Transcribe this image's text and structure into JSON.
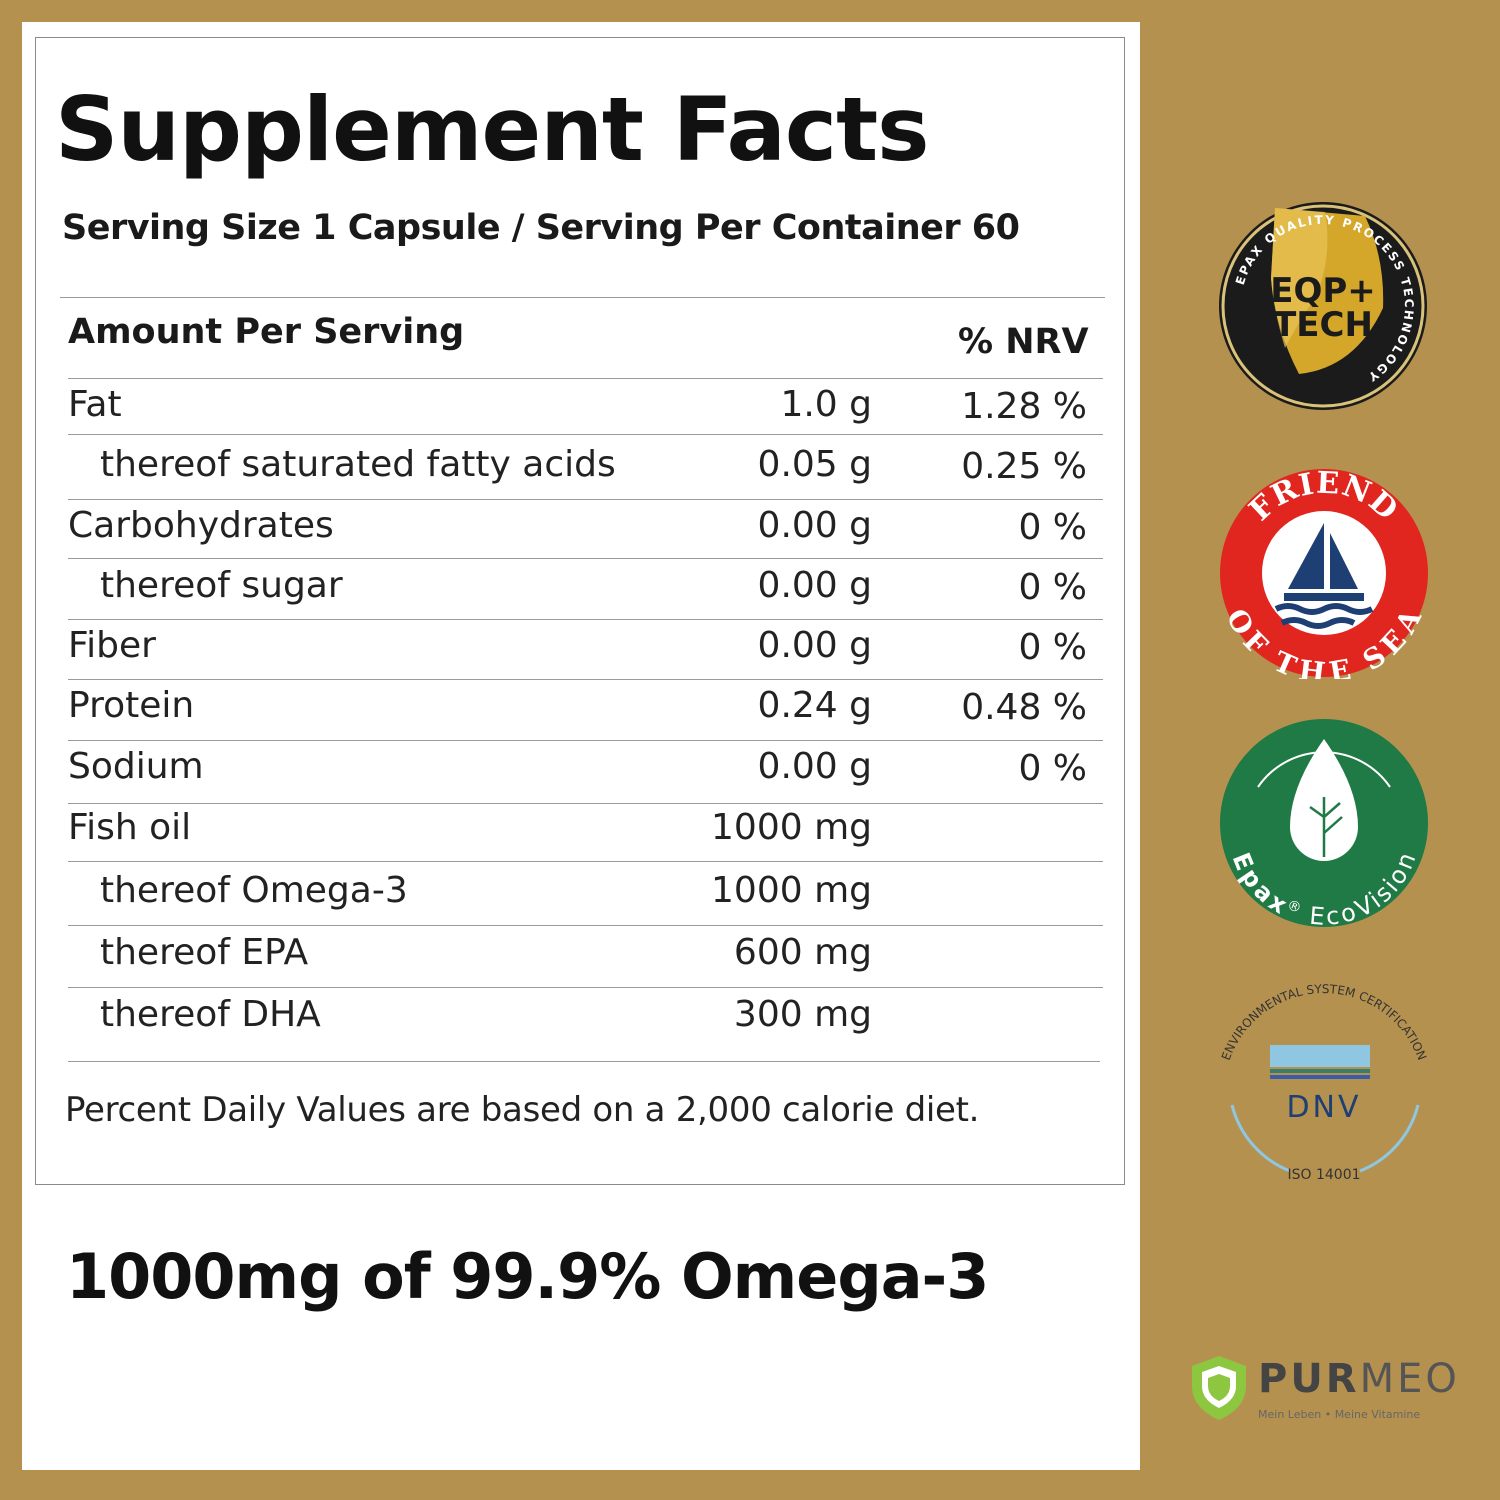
{
  "panel": {
    "title": "Supplement Facts",
    "serving": "Serving Size 1 Capsule / Serving Per Container 60",
    "header_amount": "Amount Per Serving",
    "header_nrv": "% NRV",
    "rows": [
      {
        "name": "Fat",
        "amount": "1.0 g",
        "nrv": "1.28 %"
      },
      {
        "name": "thereof saturated fatty acids",
        "amount": "0.05 g",
        "nrv": "0.25 %"
      },
      {
        "name": "Carbohydrates",
        "amount": "0.00 g",
        "nrv": "0 %"
      },
      {
        "name": "thereof sugar",
        "amount": "0.00 g",
        "nrv": "0 %"
      },
      {
        "name": "Fiber",
        "amount": "0.00 g",
        "nrv": "0 %"
      },
      {
        "name": "Protein",
        "amount": "0.24 g",
        "nrv": "0.48 %"
      },
      {
        "name": "Sodium",
        "amount": "0.00 g",
        "nrv": "0 %"
      },
      {
        "name": "Fish oil",
        "amount": "1000 mg",
        "nrv": ""
      },
      {
        "name": "thereof Omega-3",
        "amount": "1000 mg",
        "nrv": ""
      },
      {
        "name": "thereof EPA",
        "amount": "600 mg",
        "nrv": ""
      },
      {
        "name": "thereof DHA",
        "amount": "300 mg",
        "nrv": ""
      }
    ],
    "footnote": "Percent Daily Values are based on a 2,000 calorie diet."
  },
  "headline": "1000mg of 99.9% Omega-3",
  "badges": {
    "eqp": {
      "line1": "EQP+",
      "line2": "TECH",
      "ring": "EPAX QUALITY PROCESS TECHNOLOGY",
      "icon": "eqp-tech-seal-icon"
    },
    "friend": {
      "top": "FRIEND",
      "bottom": "OF THE SEA",
      "icon": "friend-of-the-sea-icon"
    },
    "ecovision": {
      "brand": "Epax",
      "reg": "®",
      "name": "EcoVision",
      "icon": "epax-ecovision-icon"
    },
    "dnv": {
      "ring": "ENVIRONMENTAL SYSTEM CERTIFICATION",
      "name": "DNV",
      "standard": "ISO 14001",
      "icon": "dnv-iso-14001-icon"
    }
  },
  "brand": {
    "name_bold": "PUR",
    "name_light": "MEO",
    "tagline": "Mein Leben • Meine Vitamine",
    "icon": "purmeo-shield-icon"
  },
  "colors": {
    "background": "#b5914f",
    "gold": "#d4a62a",
    "red": "#e0261f",
    "navy": "#1e3f73",
    "green": "#1f7a45",
    "dnv_blue": "#8fc7e3"
  }
}
